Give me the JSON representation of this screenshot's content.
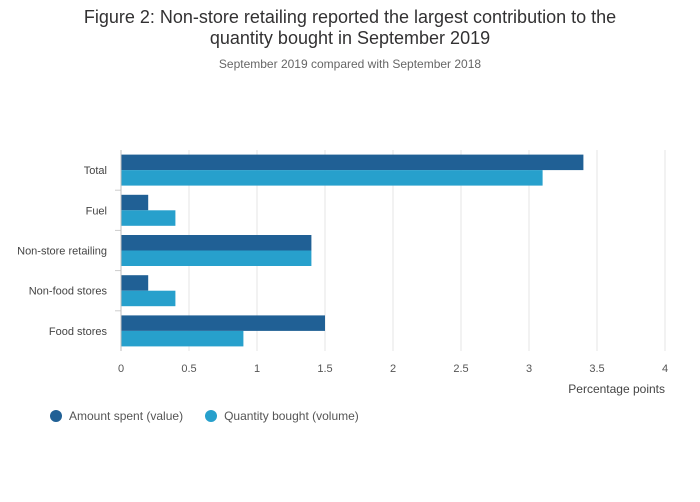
{
  "chart_data": {
    "type": "bar",
    "orientation": "horizontal",
    "title_lines": [
      "Figure 2: Non-store retailing reported the largest contribution to the",
      "quantity bought in September 2019"
    ],
    "subtitle": "September 2019 compared with September 2018",
    "categories": [
      "Total",
      "Fuel",
      "Non-store retailing",
      "Non-food stores",
      "Food stores"
    ],
    "series": [
      {
        "name": "Amount spent (value)",
        "color": "#206095",
        "values": [
          3.4,
          0.2,
          1.4,
          0.2,
          1.5
        ]
      },
      {
        "name": "Quantity bought (volume)",
        "color": "#27a0cc",
        "values": [
          3.1,
          0.4,
          1.4,
          0.4,
          0.9
        ]
      }
    ],
    "xlabel": "Percentage points",
    "ylabel": "",
    "xlim": [
      0,
      4
    ],
    "xticks": [
      "0",
      "0.5",
      "1",
      "1.5",
      "2",
      "2.5",
      "3",
      "3.5",
      "4"
    ],
    "grid": true,
    "legend_position": "bottom-left"
  }
}
